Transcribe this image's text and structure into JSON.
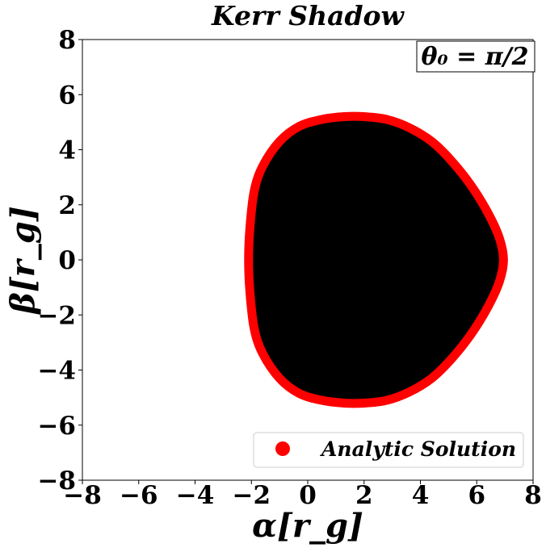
{
  "chart_data": {
    "type": "scatter",
    "title": "Kerr Shadow",
    "xlabel": "α[r_g]",
    "ylabel": "β[r_g]",
    "xlim": [
      -8,
      8
    ],
    "ylim": [
      -8,
      8
    ],
    "xticks": [
      "−8",
      "−6",
      "−4",
      "−2",
      "0",
      "2",
      "4",
      "6",
      "8"
    ],
    "yticks": [
      "−8",
      "−6",
      "−4",
      "−2",
      "0",
      "2",
      "4",
      "6",
      "8"
    ],
    "annotation": "θ₀ = π/2",
    "legend": {
      "location": "lower-right",
      "entries": [
        "Analytic Solution"
      ]
    },
    "grid": false,
    "colors": {
      "shadow": "#000000",
      "analytic": "#ff0000"
    },
    "series": [
      {
        "name": "Analytic Solution",
        "type": "points",
        "outline": {
          "alpha_range": [
            -2.1,
            6.95
          ],
          "beta_range": [
            -5.15,
            5.15
          ],
          "points": [
            [
              -2.1,
              0.0
            ],
            [
              -2.05,
              1.2
            ],
            [
              -1.9,
              2.5
            ],
            [
              -1.6,
              3.4
            ],
            [
              -1.0,
              4.3
            ],
            [
              -0.3,
              4.85
            ],
            [
              0.5,
              5.1
            ],
            [
              1.3,
              5.2
            ],
            [
              2.0,
              5.2
            ],
            [
              2.8,
              5.1
            ],
            [
              3.6,
              4.8
            ],
            [
              4.4,
              4.3
            ],
            [
              5.1,
              3.6
            ],
            [
              5.8,
              2.7
            ],
            [
              6.4,
              1.7
            ],
            [
              6.8,
              0.8
            ],
            [
              6.95,
              0.0
            ],
            [
              6.8,
              -0.8
            ],
            [
              6.4,
              -1.7
            ],
            [
              5.8,
              -2.7
            ],
            [
              5.1,
              -3.6
            ],
            [
              4.4,
              -4.3
            ],
            [
              3.6,
              -4.8
            ],
            [
              2.8,
              -5.1
            ],
            [
              2.0,
              -5.2
            ],
            [
              1.3,
              -5.2
            ],
            [
              0.5,
              -5.1
            ],
            [
              -0.3,
              -4.85
            ],
            [
              -1.0,
              -4.3
            ],
            [
              -1.6,
              -3.4
            ],
            [
              -1.9,
              -2.5
            ],
            [
              -2.05,
              -1.2
            ]
          ]
        }
      }
    ]
  }
}
